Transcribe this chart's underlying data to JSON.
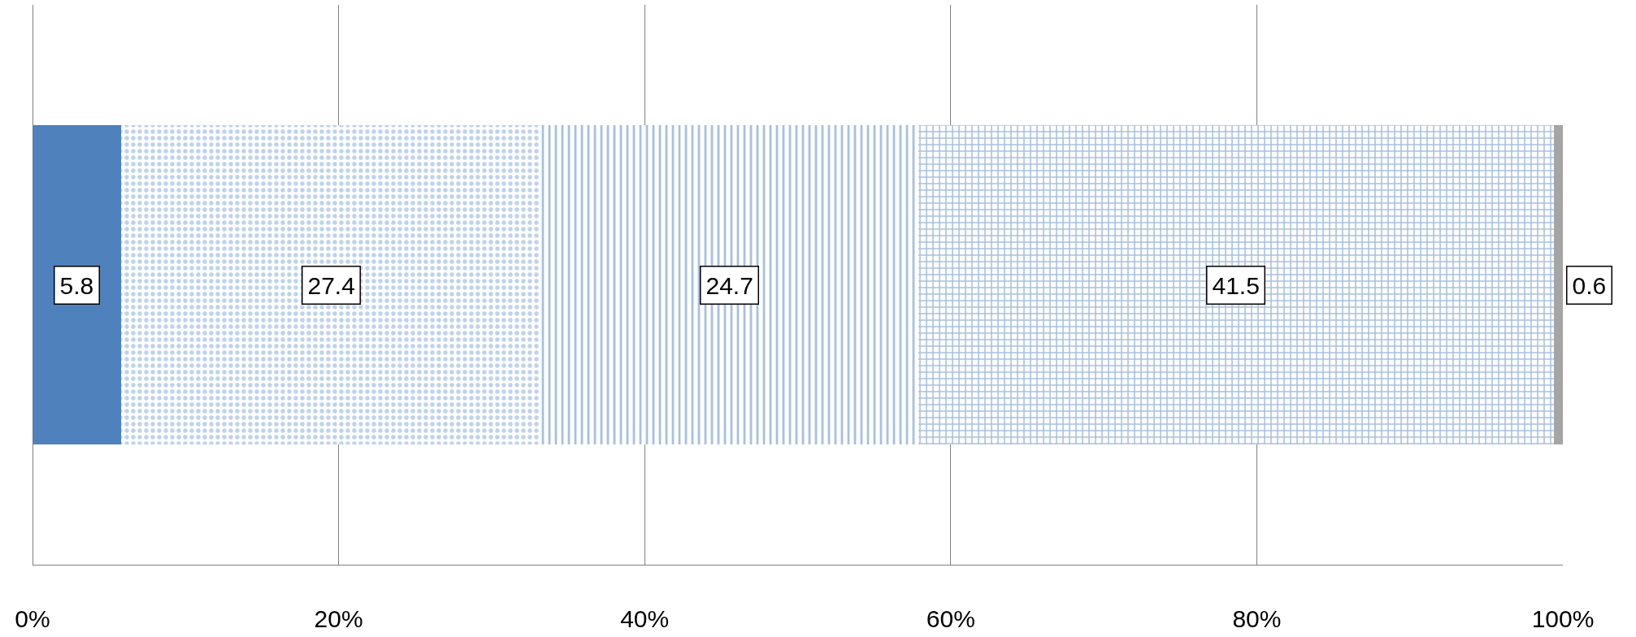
{
  "chart_data": {
    "type": "bar",
    "orientation": "horizontal",
    "stacked": true,
    "categories": [
      null
    ],
    "series": [
      {
        "color": "#4f81bd",
        "values": [
          5.8
        ]
      },
      {
        "color": "#7ea6d8",
        "values": [
          27.4
        ]
      },
      {
        "color": "#4f81bd",
        "values": [
          24.7
        ]
      },
      {
        "color": "#4f81bd",
        "values": [
          41.5
        ]
      },
      {
        "color": "#a5a5a5",
        "values": [
          0.6
        ]
      }
    ],
    "xlim": [
      0,
      100
    ],
    "xticks": [
      {
        "value": 0,
        "label": "0%"
      },
      {
        "value": 20,
        "label": "20%"
      },
      {
        "value": 40,
        "label": "40%"
      },
      {
        "value": 60,
        "label": "60%"
      },
      {
        "value": 80,
        "label": "80%"
      },
      {
        "value": 100,
        "label": "100%"
      }
    ],
    "grid": "x",
    "data_labels": true
  }
}
